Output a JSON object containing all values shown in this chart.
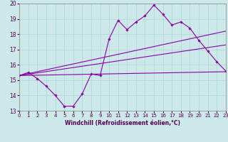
{
  "title": "",
  "xlabel": "Windchill (Refroidissement éolien,°C)",
  "ylabel": "",
  "xlim": [
    0,
    23
  ],
  "ylim": [
    13,
    20
  ],
  "xticks": [
    0,
    1,
    2,
    3,
    4,
    5,
    6,
    7,
    8,
    9,
    10,
    11,
    12,
    13,
    14,
    15,
    16,
    17,
    18,
    19,
    20,
    21,
    22,
    23
  ],
  "yticks": [
    13,
    14,
    15,
    16,
    17,
    18,
    19,
    20
  ],
  "background_color": "#cce8e8",
  "line_color": "#8800aa",
  "grid_color": "#aad4d4",
  "series": [
    {
      "x": [
        0,
        1,
        2,
        3,
        4,
        5,
        6,
        7,
        8,
        9,
        10,
        11,
        12,
        13,
        14,
        15,
        16,
        17,
        18,
        19,
        20,
        21,
        22,
        23
      ],
      "y": [
        15.3,
        15.5,
        15.1,
        14.6,
        14.0,
        13.3,
        13.3,
        14.1,
        15.4,
        15.3,
        17.7,
        18.9,
        18.3,
        18.8,
        19.2,
        19.9,
        19.3,
        18.6,
        18.8,
        18.4,
        17.6,
        16.9,
        16.2,
        15.6
      ]
    },
    {
      "x": [
        0,
        23
      ],
      "y": [
        15.3,
        18.2
      ]
    },
    {
      "x": [
        0,
        23
      ],
      "y": [
        15.3,
        17.3
      ]
    },
    {
      "x": [
        0,
        23
      ],
      "y": [
        15.3,
        15.55
      ]
    }
  ]
}
